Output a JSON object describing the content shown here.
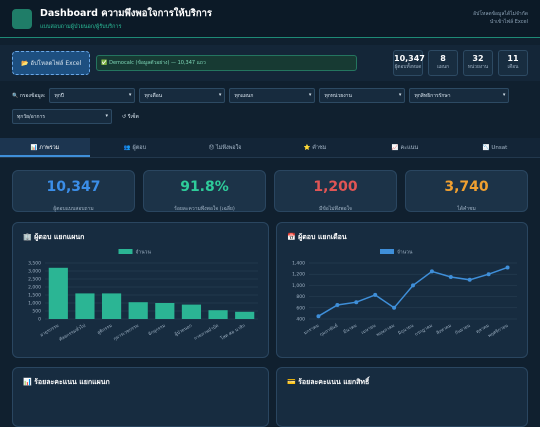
{
  "header": {
    "title": "Dashboard ความพึงพอใจการให้บริการ",
    "subtitle": "แบบสอบถามผู้ป่วยนอก/ผู้รับบริการ",
    "note_lines": [
      "อัปโหลดข้อมูลได้ไม่จำกัด",
      "นำเข้าไฟล์ Excel"
    ]
  },
  "toolbar": {
    "upload_button": "📂 อัปโหลดไฟล์ Excel",
    "status": "✅ Democalc (ข้อมูลตัวอย่าง) — 10,347 แถว",
    "stats": [
      {
        "value": "10,347",
        "label": "ผู้ตอบทั้งหมด"
      },
      {
        "value": "8",
        "label": "แผนก"
      },
      {
        "value": "32",
        "label": "หน่วยงาน"
      },
      {
        "value": "11",
        "label": "เดือน"
      }
    ]
  },
  "filters": {
    "label": "🔍 กรองข้อมูล:",
    "options": [
      "ทุกปี",
      "ทุกเดือน",
      "ทุกแผนก",
      "ทุกหน่วยงาน",
      "ทุกสิทธิการรักษา",
      "ทุกวัย/อาการ"
    ],
    "reset": "↺ รีเซ็ต"
  },
  "tabs": [
    "📊 ภาพรวม",
    "👥 ผู้ตอบ",
    "😞 ไม่พึงพอใจ",
    "⭐ คำชม",
    "📈 คะแนน",
    "📉 Unsat"
  ],
  "kpis": [
    {
      "value": "10,347",
      "label": "ผู้ตอบแบบสอบถาม",
      "color": "#3b8ee8"
    },
    {
      "value": "91.8%",
      "label": "ร้อยละความพึงพอใจ (เฉลี่ย)",
      "color": "#2ecc9a"
    },
    {
      "value": "1,200",
      "label": "มีข้อไม่พึงพอใจ",
      "color": "#e05555"
    },
    {
      "value": "3,740",
      "label": "ได้คำชม",
      "color": "#f0a030"
    }
  ],
  "chart_data": [
    {
      "type": "bar",
      "title": "🏢 ผู้ตอบ แยกแผนก",
      "categories": [
        "อายุรกรรม",
        "ศัลยกรรมทั่วไป",
        "สูติกรรม",
        "กุมารเวชกรรม",
        "จักษุกรรม",
        "ผู้ป่วยนอก",
        "กายภาพบำบัด",
        "โสต ศอ นาสิก"
      ],
      "series": [
        {
          "name": "จำนวน",
          "color": "#2bb594",
          "values": [
            3200,
            1600,
            1600,
            1050,
            1000,
            900,
            550,
            450
          ]
        }
      ],
      "ylim": [
        0,
        3500
      ],
      "yticks": [
        0,
        500,
        {
          "value": 1000,
          "label": "1,000"
        },
        {
          "value": 1500,
          "label": "1,500"
        },
        {
          "value": 2000,
          "label": "2,000"
        },
        {
          "value": 2500,
          "label": "2,500"
        },
        {
          "value": 3000,
          "label": "3,000"
        },
        {
          "value": 3500,
          "label": "3,500"
        }
      ],
      "grid": true
    },
    {
      "type": "line",
      "title": "📅 ผู้ตอบ แยกเดือน",
      "categories": [
        "มกราคม",
        "กุมภาพันธ์",
        "มีนาคม",
        "เมษายน",
        "พฤษภาคม",
        "มิถุนายน",
        "กรกฎาคม",
        "สิงหาคม",
        "กันยายน",
        "ตุลาคม",
        "พฤศจิกายน"
      ],
      "series": [
        {
          "name": "จำนวน",
          "color": "#3f8fd9",
          "values": [
            450,
            650,
            700,
            830,
            600,
            1000,
            1250,
            1150,
            1100,
            1200,
            1320
          ]
        }
      ],
      "ylim": [
        400,
        1400
      ],
      "yticks": [
        400,
        600,
        800,
        {
          "value": 1000,
          "label": "1,000"
        },
        {
          "value": 1200,
          "label": "1,200"
        },
        {
          "value": 1400,
          "label": "1,400"
        }
      ],
      "grid": true
    }
  ],
  "bottom_panels": [
    "📊 ร้อยละคะแนน แยกแผนก",
    "💳 ร้อยละคะแนน แยกสิทธิ์"
  ]
}
